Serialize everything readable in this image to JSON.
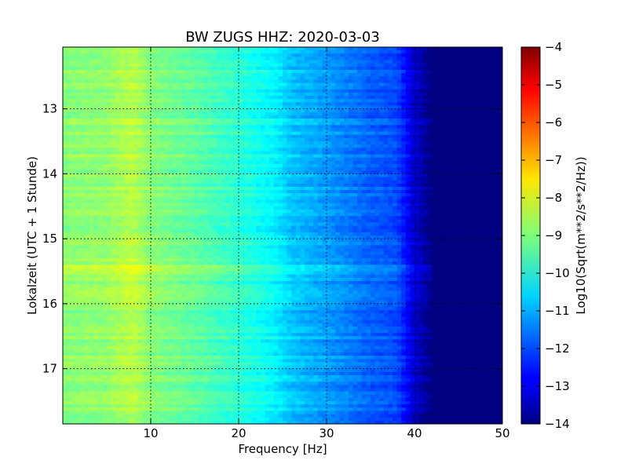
{
  "chart_data": {
    "type": "heatmap",
    "title": "BW ZUGS HHZ: 2020-03-03",
    "xlabel": "Frequency [Hz]",
    "ylabel": "Lokalzeit (UTC + 1 Stunde)",
    "xlim": [
      0,
      50
    ],
    "ylim": [
      12.05,
      17.85
    ],
    "y_inverted": true,
    "x_ticks": [
      10,
      20,
      30,
      40,
      50
    ],
    "y_ticks": [
      13,
      14,
      15,
      16,
      17
    ],
    "grid": true,
    "colorbar": {
      "label": "Log10(Sqrt(m**2/s**2/Hz))",
      "range": [
        -14,
        -4
      ],
      "ticks": [
        -4,
        -5,
        -6,
        -7,
        -8,
        -9,
        -10,
        -11,
        -12,
        -13,
        -14
      ],
      "colormap": "jet"
    },
    "frequency_profile": {
      "x": [
        0,
        5,
        8,
        10,
        15,
        20,
        24,
        26,
        30,
        35,
        38,
        40,
        42,
        50
      ],
      "values": [
        -8.9,
        -8.8,
        -8.4,
        -8.9,
        -9.3,
        -9.8,
        -10.3,
        -10.8,
        -11.2,
        -11.8,
        -12.0,
        -13.2,
        -14.0,
        -14.0
      ]
    },
    "time_bands": [
      {
        "time": 15.45,
        "offset": 0.6
      },
      {
        "time": 15.52,
        "offset": 0.5
      },
      {
        "time": 15.63,
        "offset": 0.45
      }
    ]
  },
  "icons": {
    "colorbar": "jet-colorbar"
  }
}
